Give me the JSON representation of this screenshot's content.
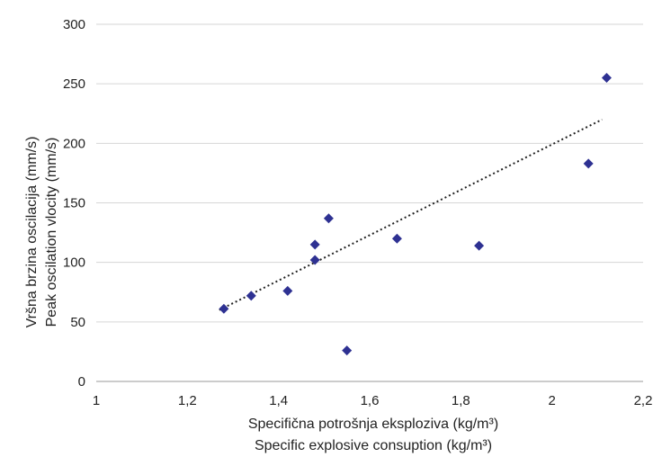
{
  "chart_data": {
    "type": "scatter",
    "xlabel_lines": [
      "Specifična potrošnja eksploziva (kg/m³)",
      "Specific explosive consuption (kg/m³)"
    ],
    "ylabel_lines": [
      "Vršna brzina oscilacija (mm/s)",
      "Peak oscilation vlocity (mm/s)"
    ],
    "xlim": [
      1,
      2.2
    ],
    "ylim": [
      0,
      300
    ],
    "x_ticks": [
      "1",
      "1,2",
      "1,4",
      "1,6",
      "1,8",
      "2",
      "2,2"
    ],
    "y_ticks": [
      "0",
      "50",
      "100",
      "150",
      "200",
      "250",
      "300"
    ],
    "grid": true,
    "series": [
      {
        "marker": "diamond",
        "color": "#2e3192",
        "x": [
          1.28,
          1.34,
          1.42,
          1.48,
          1.48,
          1.51,
          1.55,
          1.66,
          1.84,
          2.08,
          2.12
        ],
        "y": [
          61,
          72,
          76,
          102,
          115,
          137,
          26,
          120,
          114,
          183,
          255
        ]
      }
    ],
    "trendline": {
      "style": "dotted",
      "color": "#222222",
      "x": [
        1.27,
        2.11
      ],
      "y": [
        60,
        220
      ]
    }
  }
}
